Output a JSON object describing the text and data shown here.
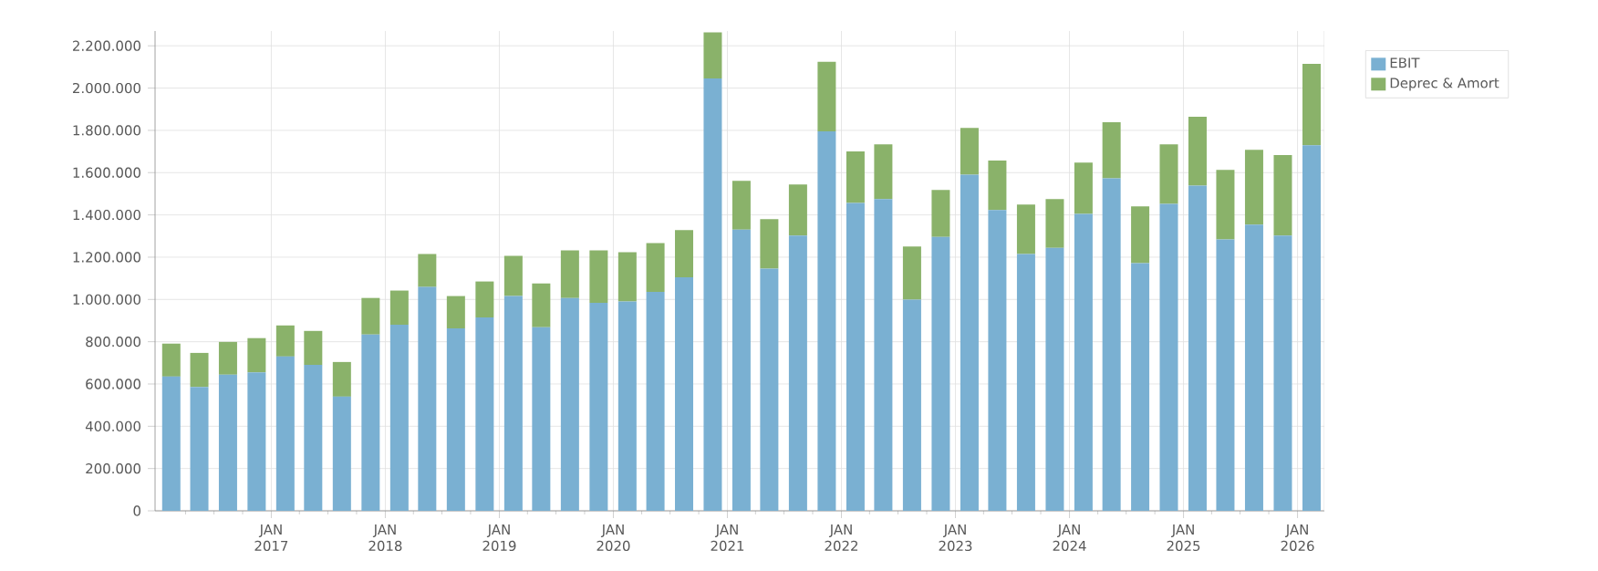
{
  "chart_data": {
    "type": "bar",
    "stacked": true,
    "grid": true,
    "legend": "top right",
    "x": [
      "2016-02-15",
      "2016-05-15",
      "2016-08-15",
      "2016-11-15",
      "2017-02-15",
      "2017-05-15",
      "2017-08-15",
      "2017-11-15",
      "2018-02-15",
      "2018-05-15",
      "2018-08-15",
      "2018-11-15",
      "2019-02-15",
      "2019-05-15",
      "2019-08-15",
      "2019-11-15",
      "2020-02-15",
      "2020-05-15",
      "2020-08-15",
      "2020-11-15",
      "2021-02-15",
      "2021-05-15",
      "2021-08-15",
      "2021-11-15",
      "2022-02-15",
      "2022-05-15",
      "2022-08-15",
      "2022-11-15",
      "2023-02-15",
      "2023-05-15",
      "2023-08-15",
      "2023-11-15",
      "2024-02-15",
      "2024-05-15",
      "2024-08-15",
      "2024-11-15",
      "2025-02-15",
      "2025-05-15",
      "2025-08-15",
      "2025-11-15",
      "2026-02-15"
    ],
    "series": [
      {
        "name": "EBIT",
        "color": "#7ab0d2",
        "values": [
          635000,
          586000,
          644000,
          655000,
          730000,
          690000,
          540000,
          834000,
          880000,
          1059000,
          863000,
          915000,
          1016000,
          869000,
          1007000,
          984000,
          990000,
          1036000,
          1105000,
          2046000,
          1330000,
          1146000,
          1302000,
          1795000,
          1457000,
          1475000,
          999000,
          1296000,
          1590000,
          1423000,
          1215000,
          1244000,
          1405000,
          1573000,
          1172000,
          1452000,
          1538000,
          1284000,
          1354000,
          1302000,
          1729000
        ]
      },
      {
        "name": "Deprec & Amort",
        "color": "#8ab26a",
        "values": [
          156000,
          161000,
          155000,
          162000,
          147000,
          161000,
          164000,
          173000,
          162000,
          156000,
          153000,
          170000,
          190000,
          207000,
          225000,
          248000,
          234000,
          231000,
          223000,
          217000,
          231000,
          234000,
          242000,
          329000,
          243000,
          259000,
          251000,
          222000,
          222000,
          234000,
          234000,
          231000,
          243000,
          265000,
          268000,
          282000,
          326000,
          329000,
          354000,
          381000,
          386000
        ]
      }
    ],
    "xlim": [
      "2015-12-25",
      "2026-03-28"
    ],
    "xticks": [
      {
        "value": "2016-04-01",
        "label": null
      },
      {
        "value": "2016-07-01",
        "label": null
      },
      {
        "value": "2016-10-01",
        "label": null
      },
      {
        "value": "2017-01-01",
        "label": "JAN 2017"
      },
      {
        "value": "2017-04-01",
        "label": null
      },
      {
        "value": "2017-07-01",
        "label": null
      },
      {
        "value": "2017-10-01",
        "label": null
      },
      {
        "value": "2018-01-01",
        "label": "JAN 2018"
      },
      {
        "value": "2018-04-01",
        "label": null
      },
      {
        "value": "2018-07-01",
        "label": null
      },
      {
        "value": "2018-10-01",
        "label": null
      },
      {
        "value": "2019-01-01",
        "label": "JAN 2019"
      },
      {
        "value": "2019-04-01",
        "label": null
      },
      {
        "value": "2019-07-01",
        "label": null
      },
      {
        "value": "2019-10-01",
        "label": null
      },
      {
        "value": "2020-01-01",
        "label": "JAN 2020"
      },
      {
        "value": "2020-04-01",
        "label": null
      },
      {
        "value": "2020-07-01",
        "label": null
      },
      {
        "value": "2020-10-01",
        "label": null
      },
      {
        "value": "2021-01-01",
        "label": "JAN 2021"
      },
      {
        "value": "2021-04-01",
        "label": null
      },
      {
        "value": "2021-07-01",
        "label": null
      },
      {
        "value": "2021-10-01",
        "label": null
      },
      {
        "value": "2022-01-01",
        "label": "JAN 2022"
      },
      {
        "value": "2022-04-01",
        "label": null
      },
      {
        "value": "2022-07-01",
        "label": null
      },
      {
        "value": "2022-10-01",
        "label": null
      },
      {
        "value": "2023-01-01",
        "label": "JAN 2023"
      },
      {
        "value": "2023-04-01",
        "label": null
      },
      {
        "value": "2023-07-01",
        "label": null
      },
      {
        "value": "2023-10-01",
        "label": null
      },
      {
        "value": "2024-01-01",
        "label": "JAN 2024"
      },
      {
        "value": "2024-04-01",
        "label": null
      },
      {
        "value": "2024-07-01",
        "label": null
      },
      {
        "value": "2024-10-01",
        "label": null
      },
      {
        "value": "2025-01-01",
        "label": "JAN 2025"
      },
      {
        "value": "2025-04-01",
        "label": null
      },
      {
        "value": "2025-07-01",
        "label": null
      },
      {
        "value": "2025-10-01",
        "label": null
      },
      {
        "value": "2026-01-01",
        "label": "JAN 2026"
      }
    ],
    "ylim": [
      0,
      2270000
    ],
    "yticks": [
      {
        "value": 0,
        "label": "0"
      },
      {
        "value": 200000,
        "label": "200.000"
      },
      {
        "value": 400000,
        "label": "400.000"
      },
      {
        "value": 600000,
        "label": "600.000"
      },
      {
        "value": 800000,
        "label": "800.000"
      },
      {
        "value": 1000000,
        "label": "1.000.000"
      },
      {
        "value": 1200000,
        "label": "1.200.000"
      },
      {
        "value": 1400000,
        "label": "1.400.000"
      },
      {
        "value": 1600000,
        "label": "1.600.000"
      },
      {
        "value": 1800000,
        "label": "1.800.000"
      },
      {
        "value": 2000000,
        "label": "2.000.000"
      },
      {
        "value": 2200000,
        "label": "2.200.000"
      }
    ]
  }
}
